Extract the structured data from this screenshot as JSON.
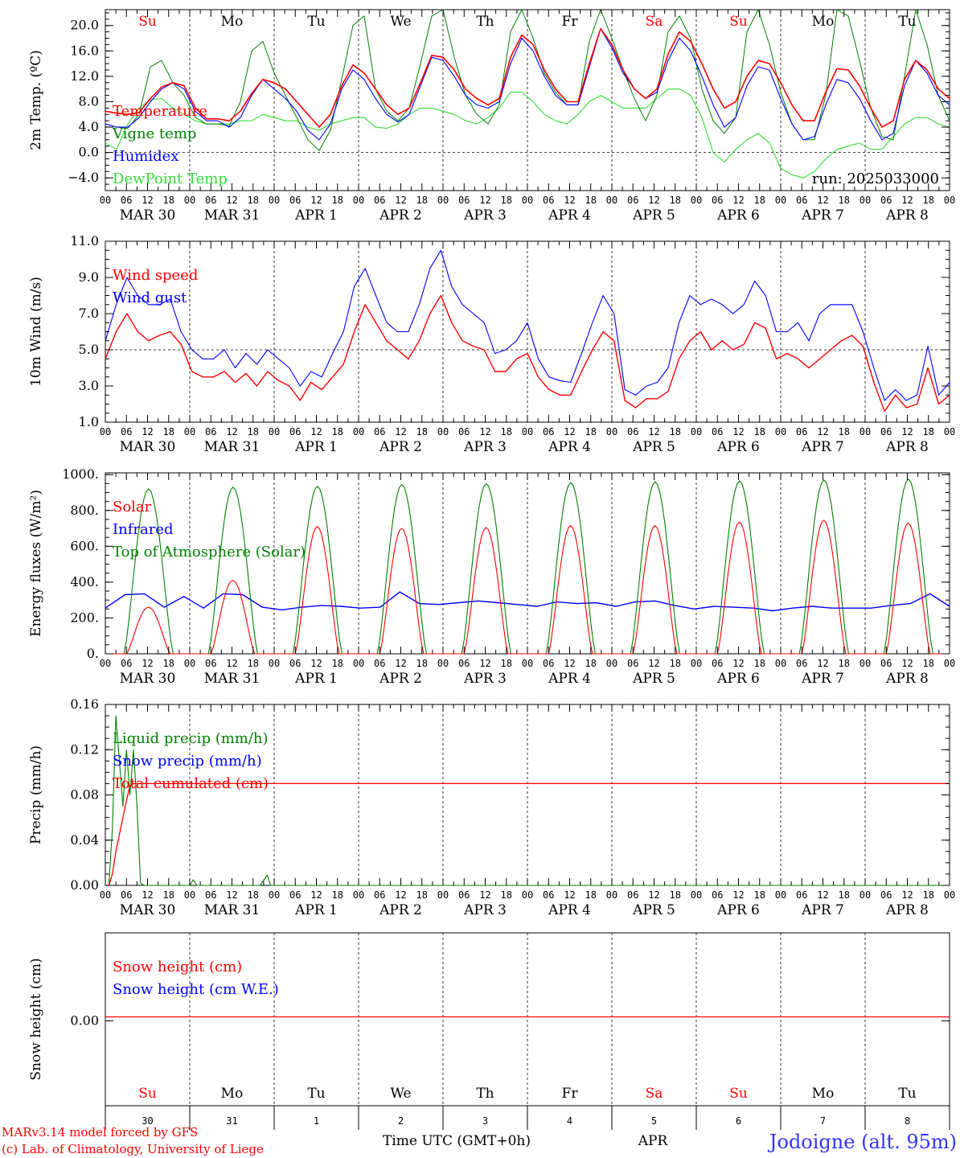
{
  "run_label": "run: 2025033000",
  "footer": {
    "model": "MARv3.14 model forced by GFS",
    "lab": "(c) Lab. of Climatology, University of Liege",
    "time_axis": "Time UTC (GMT+0h)",
    "month": "APR",
    "station": "Jodoigne (alt. 95m)"
  },
  "colors": {
    "red": "#ff0000",
    "blue": "#0000ff",
    "green": "#008000",
    "lightgreen": "#33dd33"
  },
  "time_axis": {
    "hour_labels": [
      "00",
      "06",
      "12",
      "18"
    ],
    "date_labels": [
      "MAR 30",
      "MAR 31",
      "APR  1",
      "APR  2",
      "APR  3",
      "APR  4",
      "APR  5",
      "APR  6",
      "APR  7",
      "APR  8"
    ],
    "weekdays": [
      "Su",
      "Mo",
      "Tu",
      "We",
      "Th",
      "Fr",
      "Sa",
      "Su",
      "Mo",
      "Tu"
    ],
    "weekday_colors": [
      "red",
      "black",
      "black",
      "black",
      "black",
      "black",
      "red",
      "red",
      "black",
      "black"
    ],
    "day_numbers": [
      "30",
      "31",
      "1",
      "2",
      "3",
      "4",
      "5",
      "6",
      "7",
      "8"
    ]
  },
  "chart_data": [
    {
      "type": "line",
      "ylabel": "2m Temp. (ºC)",
      "ylim": [
        -6.0,
        22.5
      ],
      "yticks": [
        "20.0",
        "16.0",
        "12.0",
        "8.0",
        "4.0",
        "0.0",
        "−4.0"
      ],
      "ytick_values": [
        20,
        16,
        12,
        8,
        4,
        0,
        -4
      ],
      "dashed_y": 0,
      "x_hours_step": 3,
      "series": [
        {
          "name": "Temperature",
          "color": "red",
          "values": [
            6.5,
            6.2,
            6.0,
            6.3,
            8.5,
            10.3,
            11.0,
            10.5,
            7.0,
            5.3,
            5.3,
            5.0,
            6.5,
            9.3,
            11.5,
            11.0,
            10.0,
            8.0,
            6.0,
            4.0,
            6.0,
            10.5,
            13.8,
            12.5,
            10.0,
            7.5,
            6.0,
            7.0,
            11.0,
            15.3,
            15.0,
            13.0,
            10.0,
            8.5,
            7.5,
            8.5,
            15.0,
            18.5,
            17.0,
            13.0,
            10.0,
            8.0,
            8.0,
            14.0,
            19.5,
            17.0,
            13.0,
            10.0,
            8.5,
            10.0,
            15.5,
            19.0,
            17.5,
            14.0,
            10.0,
            7.0,
            8.0,
            12.0,
            14.5,
            14.0,
            11.0,
            7.5,
            5.0,
            5.0,
            9.5,
            13.2,
            13.0,
            10.5,
            7.0,
            4.0,
            5.0,
            11.5,
            14.5,
            13.0,
            10.0,
            8.5
          ]
        },
        {
          "name": "Vigne temp",
          "color": "green",
          "values": [
            4.5,
            4.0,
            3.8,
            6.0,
            13.5,
            14.5,
            11.0,
            9.0,
            5.5,
            4.5,
            4.5,
            4.2,
            8.0,
            16.0,
            17.5,
            12.5,
            9.0,
            5.5,
            2.0,
            0.3,
            3.5,
            11.5,
            20.0,
            21.5,
            10.0,
            6.5,
            5.0,
            7.0,
            14.0,
            21.5,
            22.5,
            15.0,
            9.0,
            6.0,
            4.5,
            7.5,
            19.0,
            22.5,
            18.0,
            12.5,
            9.5,
            7.5,
            7.5,
            17.5,
            22.5,
            18.0,
            13.0,
            8.5,
            5.0,
            9.0,
            19.0,
            21.5,
            18.0,
            10.0,
            5.0,
            3.0,
            5.5,
            19.0,
            22.5,
            17.0,
            9.5,
            4.5,
            2.0,
            2.0,
            9.0,
            22.5,
            21.5,
            14.5,
            7.0,
            2.5,
            2.0,
            12.0,
            22.5,
            17.0,
            9.0,
            5.0
          ]
        },
        {
          "name": "Humidex",
          "color": "blue",
          "values": [
            4.5,
            4.0,
            4.0,
            5.5,
            8.0,
            10.0,
            11.0,
            10.0,
            6.5,
            5.0,
            5.0,
            4.0,
            5.5,
            9.0,
            11.5,
            10.0,
            8.5,
            6.5,
            3.5,
            2.0,
            4.5,
            10.0,
            13.0,
            11.5,
            8.5,
            6.0,
            4.8,
            6.0,
            10.5,
            15.0,
            14.5,
            12.0,
            9.0,
            7.5,
            7.0,
            8.0,
            14.0,
            18.0,
            16.0,
            12.0,
            9.0,
            7.5,
            7.5,
            13.5,
            19.5,
            16.5,
            12.5,
            10.0,
            8.5,
            9.5,
            14.5,
            18.0,
            16.0,
            12.0,
            7.5,
            4.0,
            5.5,
            10.5,
            13.5,
            13.0,
            8.5,
            4.5,
            2.0,
            2.5,
            7.5,
            11.5,
            11.0,
            8.5,
            5.0,
            2.0,
            3.0,
            10.5,
            14.5,
            12.5,
            9.0,
            7.5
          ]
        },
        {
          "name": "DewPoint Temp",
          "color": "lightgreen",
          "values": [
            1.5,
            0.5,
            4.5,
            7.0,
            8.3,
            8.5,
            7.0,
            6.0,
            5.0,
            4.5,
            4.5,
            4.5,
            5.0,
            5.0,
            6.0,
            5.5,
            5.0,
            5.0,
            4.0,
            3.5,
            4.5,
            5.0,
            5.5,
            5.5,
            4.0,
            3.8,
            4.5,
            6.0,
            7.0,
            7.0,
            6.5,
            6.0,
            5.0,
            4.5,
            5.5,
            7.0,
            9.5,
            9.5,
            8.0,
            6.0,
            5.0,
            4.5,
            6.0,
            8.0,
            9.0,
            8.0,
            7.0,
            7.0,
            7.0,
            8.5,
            10.0,
            10.0,
            9.0,
            5.5,
            0.0,
            -1.5,
            0.5,
            2.0,
            3.0,
            1.5,
            -2.5,
            -3.5,
            -4.0,
            -3.0,
            -1.0,
            0.5,
            1.0,
            1.5,
            0.5,
            0.5,
            2.5,
            4.5,
            5.5,
            5.5,
            4.5,
            4.0
          ]
        }
      ]
    },
    {
      "type": "line",
      "ylabel": "10m Wind (m/s)",
      "ylim": [
        1.0,
        11.0
      ],
      "yticks": [
        "11.0",
        "9.0",
        "7.0",
        "5.0",
        "3.0",
        "1.0"
      ],
      "ytick_values": [
        11,
        9,
        7,
        5,
        3,
        1
      ],
      "dashed_y": 5,
      "x_hours_step": 3,
      "series": [
        {
          "name": "Wind speed",
          "color": "red",
          "values": [
            4.5,
            6.0,
            7.0,
            6.0,
            5.5,
            5.8,
            6.0,
            5.3,
            3.8,
            3.5,
            3.5,
            3.8,
            3.2,
            3.7,
            3.0,
            3.8,
            3.3,
            3.0,
            2.2,
            3.2,
            2.8,
            3.5,
            4.2,
            6.0,
            7.5,
            6.5,
            5.5,
            5.0,
            4.5,
            5.5,
            7.0,
            8.0,
            6.5,
            5.5,
            5.2,
            5.0,
            3.8,
            3.8,
            4.5,
            4.8,
            3.5,
            2.8,
            2.5,
            2.5,
            3.8,
            5.0,
            6.0,
            5.5,
            2.2,
            1.8,
            2.3,
            2.3,
            2.7,
            4.5,
            5.5,
            6.0,
            5.0,
            5.5,
            5.0,
            5.3,
            6.5,
            6.2,
            4.5,
            4.8,
            4.5,
            4.0,
            4.5,
            5.0,
            5.5,
            5.8,
            5.2,
            3.2,
            1.6,
            2.5,
            1.8,
            2.0,
            4.0,
            2.0,
            2.5
          ]
        },
        {
          "name": "Wind gust",
          "color": "blue",
          "values": [
            5.5,
            7.5,
            9.0,
            8.0,
            7.5,
            7.5,
            7.8,
            6.0,
            5.0,
            4.5,
            4.5,
            5.0,
            4.0,
            4.8,
            4.2,
            5.0,
            4.5,
            4.0,
            3.0,
            3.8,
            3.5,
            4.8,
            6.0,
            8.5,
            9.5,
            8.0,
            6.5,
            6.0,
            6.0,
            7.5,
            9.5,
            10.5,
            8.5,
            7.5,
            7.0,
            6.5,
            4.8,
            5.0,
            5.5,
            6.5,
            4.5,
            3.5,
            3.3,
            3.2,
            4.8,
            6.5,
            8.0,
            7.0,
            2.8,
            2.5,
            3.0,
            3.2,
            4.0,
            6.5,
            8.0,
            7.5,
            7.8,
            7.5,
            7.0,
            7.5,
            8.8,
            8.0,
            6.0,
            6.0,
            6.5,
            5.5,
            7.0,
            7.5,
            7.5,
            7.5,
            6.0,
            4.0,
            2.2,
            2.8,
            2.2,
            2.5,
            5.2,
            2.5,
            3.2
          ]
        }
      ]
    },
    {
      "type": "line",
      "ylabel": "Energy fluxes (W/m²)",
      "ylim": [
        0,
        1010
      ],
      "yticks": [
        "1000.",
        "800.",
        "600.",
        "400.",
        "200.",
        "0."
      ],
      "ytick_values": [
        1000,
        800,
        600,
        400,
        200,
        0
      ],
      "x_hours_step": 1,
      "series": [
        {
          "name": "Solar",
          "color": "red",
          "values_note": "daily peaks (W/m²)",
          "day_peaks": [
            260,
            410,
            710,
            700,
            705,
            715,
            715,
            735,
            745,
            730
          ]
        },
        {
          "name": "Infrared",
          "color": "blue",
          "values": [
            255,
            330,
            335,
            260,
            320,
            255,
            335,
            330,
            260,
            245,
            260,
            270,
            265,
            255,
            260,
            345,
            280,
            275,
            285,
            295,
            285,
            275,
            265,
            290,
            280,
            285,
            265,
            290,
            295,
            270,
            250,
            265,
            260,
            255,
            240,
            255,
            265,
            255,
            255,
            255,
            270,
            280,
            335,
            265
          ]
        },
        {
          "name": "Top of Atmosphere (Solar)",
          "color": "green",
          "values_note": "daily peaks (W/m²)",
          "day_peaks": [
            920,
            930,
            935,
            945,
            950,
            955,
            960,
            965,
            970,
            975
          ]
        }
      ]
    },
    {
      "type": "line",
      "ylabel": "Precip (mm/h)",
      "ylim": [
        0.0,
        0.16
      ],
      "yticks": [
        "0.16",
        "0.12",
        "0.08",
        "0.04",
        "0.00"
      ],
      "ytick_values": [
        0.16,
        0.12,
        0.08,
        0.04,
        0.0
      ],
      "series": [
        {
          "name": "Liquid precip (mm/h)",
          "color": "green"
        },
        {
          "name": "Snow precip (mm/h)",
          "color": "blue"
        },
        {
          "name": "Total cumulated (cm)",
          "color": "red"
        }
      ],
      "liquid_points": [
        [
          0,
          0
        ],
        [
          1,
          0.0
        ],
        [
          2,
          0.05
        ],
        [
          3,
          0.15
        ],
        [
          4,
          0.11
        ],
        [
          5,
          0.07
        ],
        [
          6,
          0.12
        ],
        [
          7,
          0.08
        ],
        [
          8,
          0.12
        ],
        [
          9,
          0.07
        ],
        [
          10,
          0.002
        ],
        [
          11,
          0
        ],
        [
          24,
          0
        ],
        [
          25,
          0.005
        ],
        [
          26,
          0
        ],
        [
          44,
          0
        ],
        [
          46,
          0.009
        ],
        [
          47,
          0
        ]
      ],
      "total_points": [
        [
          0,
          0
        ],
        [
          1,
          0
        ],
        [
          2,
          0.01
        ],
        [
          3,
          0.03
        ],
        [
          4,
          0.045
        ],
        [
          5,
          0.06
        ],
        [
          6,
          0.075
        ],
        [
          7,
          0.088
        ],
        [
          8,
          0.09
        ],
        [
          240,
          0.09
        ]
      ]
    },
    {
      "type": "line",
      "ylabel": "Snow height (cm)",
      "yticks": [
        "0.00"
      ],
      "ytick_values": [
        0
      ],
      "series": [
        {
          "name": "Snow height (cm)",
          "color": "red",
          "values_note": "constant 0.00"
        },
        {
          "name": "Snow height (cm W.E.)",
          "color": "blue"
        }
      ]
    }
  ]
}
